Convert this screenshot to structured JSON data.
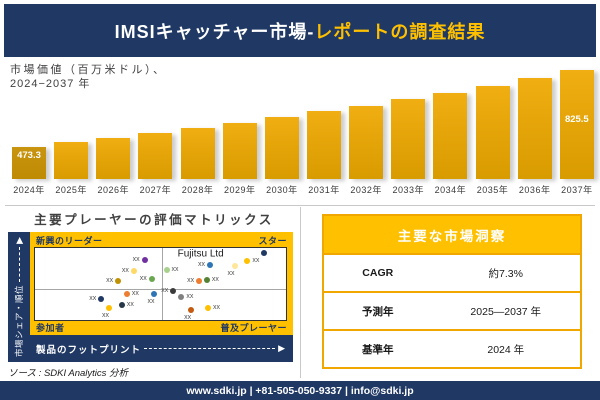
{
  "colors": {
    "navy": "#1F3864",
    "gold": "#FFC000",
    "bar_gold": "#E3A60B",
    "bar_first": "#C4910A"
  },
  "header": {
    "title_white": "IMSIキャッチャー市場-",
    "title_yellow": "レポートの調査結果"
  },
  "chart_data": [
    {
      "type": "bar",
      "title": "市場価値（百万米ドル）、2024−2037 年",
      "title_lines": [
        "市場価値（百万米ドル）、",
        "2024−2037 年"
      ],
      "categories": [
        "2024年",
        "2025年",
        "2026年",
        "2027年",
        "2028年",
        "2029年",
        "2030年",
        "2031年",
        "2032年",
        "2033年",
        "2034年",
        "2035年",
        "2036年",
        "2037年"
      ],
      "values": [
        473.3,
        494,
        515,
        537,
        560,
        584,
        610,
        636,
        663,
        692,
        722,
        753,
        788,
        825.5
      ],
      "data_labels": {
        "first": "473.3",
        "last": "825.5"
      },
      "note": "only the 2024 and 2037 bars carry visible data labels; intermediate values estimated from bar heights",
      "xlabel": "",
      "ylabel": "市場価値（百万米ドル）",
      "grid": false,
      "legend": false
    },
    {
      "type": "scatter",
      "title": "主要プレーヤーの評価マトリックス",
      "xlabel": "製品のフットプリント",
      "ylabel": "市場シェア・順位",
      "quadrants": {
        "top_left": "新興のリーダー",
        "top_right": "スター",
        "bottom_left": "参加者",
        "bottom_right": "普及プレーヤー"
      },
      "labeled_point": "Fujitsu Ltd",
      "labeled_point_pos": {
        "x": 66,
        "y": 8
      },
      "points": [
        {
          "x": 43.7,
          "y": 17.3,
          "color": "#7030A0",
          "label": "xx",
          "side": "left"
        },
        {
          "x": 39.4,
          "y": 32.0,
          "color": "#FFD966",
          "label": "xx",
          "side": "left"
        },
        {
          "x": 46.5,
          "y": 42.7,
          "color": "#6AA84F",
          "label": "xx",
          "side": "left"
        },
        {
          "x": 33.1,
          "y": 45.3,
          "color": "#BF9000",
          "label": "xx",
          "side": "left"
        },
        {
          "x": 91.3,
          "y": 6.7,
          "color": "#1F3864",
          "label": "",
          "side": "none"
        },
        {
          "x": 69.7,
          "y": 24.0,
          "color": "#2E75B6",
          "label": "xx",
          "side": "left"
        },
        {
          "x": 79.5,
          "y": 25.3,
          "color": "#FFE699",
          "label": "xx",
          "side": "bottom"
        },
        {
          "x": 84.6,
          "y": 18.7,
          "color": "#FFC000",
          "label": "xx",
          "side": "right"
        },
        {
          "x": 52.4,
          "y": 30.7,
          "color": "#A9D18E",
          "label": "xx",
          "side": "right"
        },
        {
          "x": 65.4,
          "y": 45.3,
          "color": "#ED7D31",
          "label": "xx",
          "side": "left"
        },
        {
          "x": 68.5,
          "y": 44.0,
          "color": "#548235",
          "label": "xx",
          "side": "right"
        },
        {
          "x": 36.6,
          "y": 64.0,
          "color": "#ED7D31",
          "label": "xx",
          "side": "right"
        },
        {
          "x": 47.6,
          "y": 64.0,
          "color": "#2E75B6",
          "label": "xx",
          "side": "bottom"
        },
        {
          "x": 26.4,
          "y": 70.7,
          "color": "#1F3864",
          "label": "xx",
          "side": "left"
        },
        {
          "x": 34.6,
          "y": 78.7,
          "color": "#283747",
          "label": "xx",
          "side": "right"
        },
        {
          "x": 29.5,
          "y": 82.7,
          "color": "#FFC000",
          "label": "xx",
          "side": "bottom"
        },
        {
          "x": 55.1,
          "y": 60.0,
          "color": "#3B3B3B",
          "label": "xx",
          "side": "left"
        },
        {
          "x": 58.3,
          "y": 68.0,
          "color": "#808080",
          "label": "xx",
          "side": "right"
        },
        {
          "x": 62.2,
          "y": 86.7,
          "color": "#C55A11",
          "label": "xx",
          "side": "bottom"
        },
        {
          "x": 68.9,
          "y": 84.0,
          "color": "#FFC000",
          "label": "xx",
          "side": "right"
        }
      ]
    },
    {
      "type": "table",
      "title": "主要な市場洞察",
      "rows": [
        {
          "label": "CAGR",
          "value": "約7.3%"
        },
        {
          "label": "予測年",
          "value": "2025—2037 年"
        },
        {
          "label": "基準年",
          "value": "2024 年"
        }
      ]
    }
  ],
  "source": {
    "text": "ソース : SDKI Analytics 分析"
  },
  "footer": {
    "text": "www.sdki.jp | +81-505-050-9337 | info@sdki.jp"
  }
}
